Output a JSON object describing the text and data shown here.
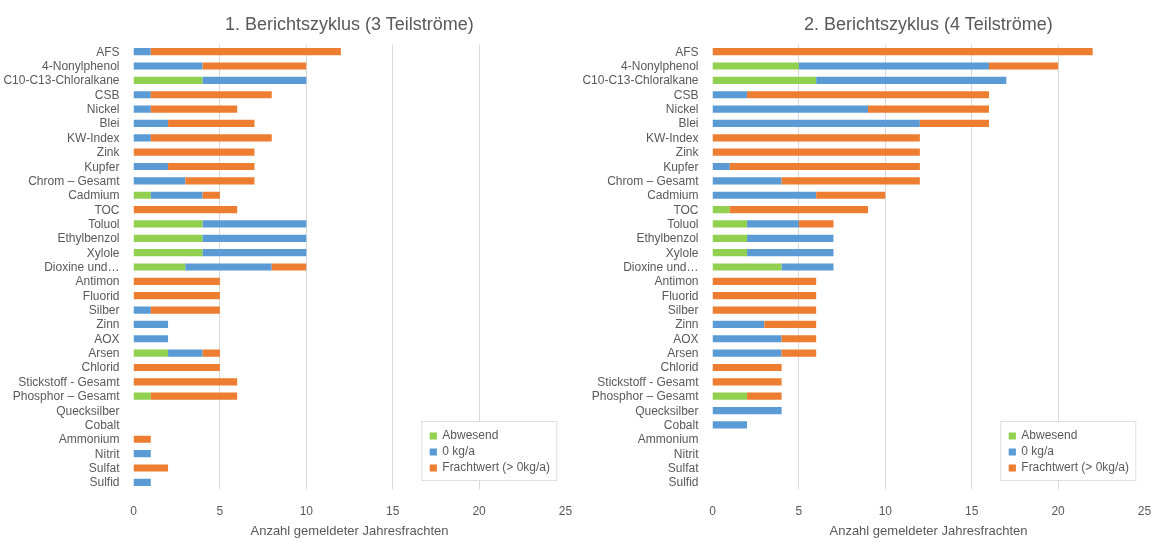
{
  "chart_data": [
    {
      "type": "bar",
      "orientation": "horizontal",
      "stacked": true,
      "title": "1. Berichtszyklus (3 Teilströme)",
      "xlabel": "Anzahl gemeldeter Jahresfrachten",
      "categories": [
        "AFS",
        "4-Nonylphenol",
        "C10-C13-Chloralkane",
        "CSB",
        "Nickel",
        "Blei",
        "KW-Index",
        "Zink",
        "Kupfer",
        "Chrom – Gesamt",
        "Cadmium",
        "TOC",
        "Toluol",
        "Ethylbenzol",
        "Xylole",
        "Dioxine und…",
        "Antimon",
        "Fluorid",
        "Silber",
        "Zinn",
        "AOX",
        "Arsen",
        "Chlorid",
        "Stickstoff - Gesamt",
        "Phosphor – Gesamt",
        "Quecksilber",
        "Cobalt",
        "Ammonium",
        "Nitrit",
        "Sulfat",
        "Sulfid"
      ],
      "series": [
        {
          "name": "Abwesend",
          "color": "#92d050",
          "values": [
            0,
            0,
            4,
            0,
            0,
            0,
            0,
            0,
            0,
            0,
            1,
            0,
            4,
            4,
            4,
            3,
            0,
            0,
            0,
            0,
            0,
            2,
            0,
            0,
            1,
            0,
            0,
            0,
            0,
            0,
            0
          ]
        },
        {
          "name": "0 kg/a",
          "color": "#5b9bd5",
          "values": [
            1,
            4,
            6,
            1,
            1,
            2,
            1,
            0,
            2,
            3,
            3,
            0,
            6,
            6,
            6,
            5,
            0,
            0,
            1,
            2,
            2,
            2,
            0,
            0,
            0,
            0,
            0,
            0,
            1,
            0,
            1
          ]
        },
        {
          "name": "Frachtwert (> 0kg/a)",
          "color": "#ed7d31",
          "values": [
            11,
            6,
            0,
            7,
            5,
            5,
            7,
            7,
            5,
            4,
            1,
            6,
            0,
            0,
            0,
            2,
            5,
            5,
            4,
            0,
            0,
            1,
            5,
            6,
            5,
            0,
            0,
            1,
            0,
            2,
            0
          ]
        }
      ],
      "xlim": [
        0,
        25
      ],
      "xticks": [
        0,
        5,
        10,
        15,
        20,
        25
      ],
      "grid": "x",
      "legend": "bottom right"
    },
    {
      "type": "bar",
      "orientation": "horizontal",
      "stacked": true,
      "title": "2. Berichtszyklus (4 Teilströme)",
      "xlabel": "Anzahl gemeldeter Jahresfrachten",
      "categories": [
        "AFS",
        "4-Nonylphenol",
        "C10-C13-Chloralkane",
        "CSB",
        "Nickel",
        "Blei",
        "KW-Index",
        "Zink",
        "Kupfer",
        "Chrom – Gesamt",
        "Cadmium",
        "TOC",
        "Toluol",
        "Ethylbenzol",
        "Xylole",
        "Dioxine und…",
        "Antimon",
        "Fluorid",
        "Silber",
        "Zinn",
        "AOX",
        "Arsen",
        "Chlorid",
        "Stickstoff - Gesamt",
        "Phosphor – Gesamt",
        "Quecksilber",
        "Cobalt",
        "Ammonium",
        "Nitrit",
        "Sulfat",
        "Sulfid"
      ],
      "series": [
        {
          "name": "Abwesend",
          "color": "#92d050",
          "values": [
            0,
            5,
            6,
            0,
            0,
            0,
            0,
            0,
            0,
            0,
            0,
            1,
            2,
            2,
            2,
            4,
            0,
            0,
            0,
            0,
            0,
            0,
            0,
            0,
            2,
            0,
            0,
            0,
            0,
            0,
            0
          ]
        },
        {
          "name": "0 kg/a",
          "color": "#5b9bd5",
          "values": [
            0,
            11,
            11,
            2,
            9,
            12,
            0,
            0,
            1,
            4,
            6,
            0,
            3,
            5,
            5,
            3,
            0,
            0,
            0,
            3,
            4,
            4,
            0,
            0,
            0,
            4,
            2,
            0,
            0,
            0,
            0
          ]
        },
        {
          "name": "Frachtwert (> 0kg/a)",
          "color": "#ed7d31",
          "values": [
            22,
            4,
            0,
            14,
            7,
            4,
            12,
            12,
            11,
            8,
            4,
            8,
            2,
            0,
            0,
            0,
            6,
            6,
            6,
            3,
            2,
            2,
            4,
            4,
            2,
            0,
            0,
            0,
            0,
            0,
            0
          ]
        }
      ],
      "xlim": [
        0,
        25
      ],
      "xticks": [
        0,
        5,
        10,
        15,
        20,
        25
      ],
      "grid": "x",
      "legend": "bottom right"
    }
  ]
}
